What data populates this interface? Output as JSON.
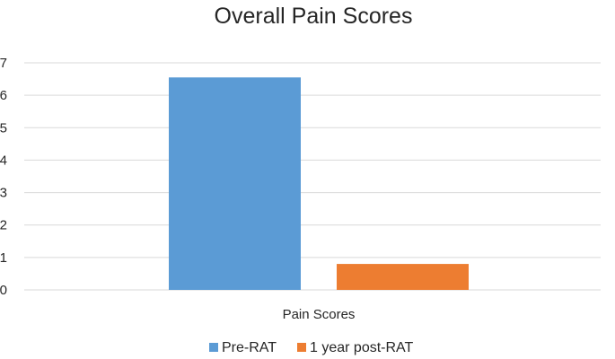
{
  "chart_data": {
    "type": "bar",
    "title": "Overall Pain Scores",
    "xlabel": "",
    "ylabel": "",
    "categories": [
      "Pain Scores"
    ],
    "series": [
      {
        "name": "Pre-RAT",
        "values": [
          6.55
        ],
        "color": "#5b9bd5"
      },
      {
        "name": "1 year post-RAT",
        "values": [
          0.8
        ],
        "color": "#ed7d31"
      }
    ],
    "ylim": [
      0,
      7
    ],
    "yticks": [
      "0",
      "1",
      "2",
      "3",
      "4",
      "5",
      "6",
      "7"
    ],
    "grid": true,
    "legend_position": "bottom"
  }
}
